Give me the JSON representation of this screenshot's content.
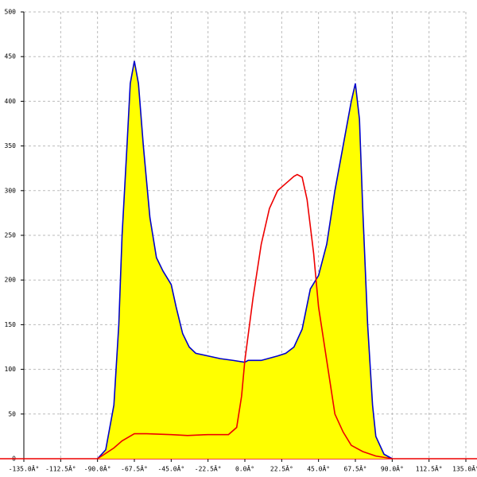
{
  "chart_data": {
    "type": "area",
    "grid": true,
    "x_series": [
      -90,
      -85,
      -80,
      -77,
      -75,
      -72,
      -70,
      -67.5,
      -65,
      -62,
      -58,
      -54,
      -50,
      -45,
      -42,
      -38,
      -34,
      -30,
      -22.5,
      -15,
      -7,
      0,
      2,
      10,
      20,
      25,
      30,
      35,
      40,
      45,
      50,
      55,
      60,
      65,
      67.5,
      70,
      72,
      75,
      78,
      80,
      85,
      90
    ],
    "x_red": [
      -90,
      -80,
      -75,
      -67.5,
      -60,
      -45,
      -35,
      -22.5,
      -10,
      -5,
      -2,
      0,
      5,
      10,
      15,
      20,
      25,
      30,
      32,
      35,
      38,
      42,
      45,
      50,
      55,
      60,
      65,
      72,
      80,
      90
    ],
    "series": [
      {
        "color": "#0000cc",
        "fill": "#ffff00",
        "values": [
          0,
          10,
          60,
          150,
          250,
          350,
          420,
          445,
          420,
          350,
          270,
          225,
          210,
          195,
          170,
          140,
          125,
          118,
          115,
          112,
          110,
          108,
          110,
          110,
          115,
          118,
          125,
          145,
          190,
          205,
          240,
          300,
          350,
          400,
          420,
          380,
          280,
          150,
          60,
          25,
          5,
          0
        ]
      },
      {
        "color": "#ee0000",
        "values": [
          0,
          12,
          20,
          28,
          28,
          27,
          26,
          27,
          27,
          35,
          70,
          110,
          180,
          240,
          280,
          300,
          308,
          316,
          318,
          315,
          290,
          230,
          170,
          110,
          50,
          30,
          15,
          8,
          3,
          0
        ]
      }
    ],
    "xlim": [
      -135,
      135
    ],
    "ylim": [
      0,
      500
    ],
    "xticks": [
      {
        "value": -135,
        "label": "-135.0Â°"
      },
      {
        "value": -112.5,
        "label": "-112.5Â°"
      },
      {
        "value": -90,
        "label": "-90.0Â°"
      },
      {
        "value": -67.5,
        "label": "-67.5Â°"
      },
      {
        "value": -45,
        "label": "-45.0Â°"
      },
      {
        "value": -22.5,
        "label": "-22.5Â°"
      },
      {
        "value": 0,
        "label": "0.0Â°"
      },
      {
        "value": 22.5,
        "label": "22.5Â°"
      },
      {
        "value": 45,
        "label": "45.0Â°"
      },
      {
        "value": 67.5,
        "label": "67.5Â°"
      },
      {
        "value": 90,
        "label": "90.0Â°"
      },
      {
        "value": 112.5,
        "label": "112.5Â°"
      },
      {
        "value": 135,
        "label": "135.0Â°"
      }
    ],
    "yticks": [
      0,
      50,
      100,
      150,
      200,
      250,
      300,
      350,
      400,
      450,
      500
    ]
  }
}
